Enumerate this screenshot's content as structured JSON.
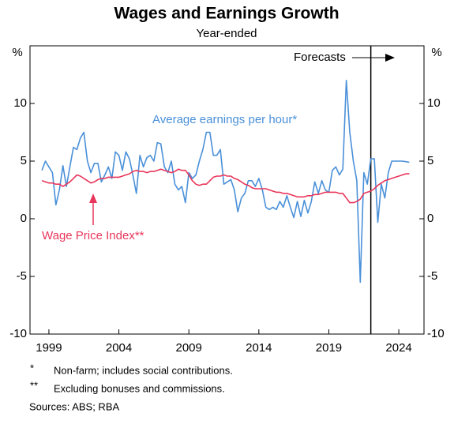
{
  "chart_data": {
    "type": "line",
    "title": "Wages and Earnings Growth",
    "subtitle": "Year-ended",
    "y_unit": "%",
    "xlim": [
      1997.65,
      2025.8
    ],
    "xticks": [
      1999,
      2004,
      2009,
      2014,
      2019,
      2024
    ],
    "ylim": [
      -10,
      15
    ],
    "yticks": [
      -10,
      -5,
      0,
      5,
      10
    ],
    "grid": false,
    "forecast_start": 2022,
    "forecast_label": "Forecasts",
    "x": [
      1998.5,
      1998.75,
      1999,
      1999.25,
      1999.5,
      1999.75,
      2000,
      2000.25,
      2000.5,
      2000.75,
      2001,
      2001.25,
      2001.5,
      2001.75,
      2002,
      2002.25,
      2002.5,
      2002.75,
      2003,
      2003.25,
      2003.5,
      2003.75,
      2004,
      2004.25,
      2004.5,
      2004.75,
      2005,
      2005.25,
      2005.5,
      2005.75,
      2006,
      2006.25,
      2006.5,
      2006.75,
      2007,
      2007.25,
      2007.5,
      2007.75,
      2008,
      2008.25,
      2008.5,
      2008.75,
      2009,
      2009.25,
      2009.5,
      2009.75,
      2010,
      2010.25,
      2010.5,
      2010.75,
      2011,
      2011.25,
      2011.5,
      2011.75,
      2012,
      2012.25,
      2012.5,
      2012.75,
      2013,
      2013.25,
      2013.5,
      2013.75,
      2014,
      2014.25,
      2014.5,
      2014.75,
      2015,
      2015.25,
      2015.5,
      2015.75,
      2016,
      2016.25,
      2016.5,
      2016.75,
      2017,
      2017.25,
      2017.5,
      2017.75,
      2018,
      2018.25,
      2018.5,
      2018.75,
      2019,
      2019.25,
      2019.5,
      2019.75,
      2020,
      2020.25,
      2020.5,
      2020.75,
      2021,
      2021.25,
      2021.5,
      2021.75,
      2022,
      2022.25,
      2022.5,
      2022.75,
      2023,
      2023.25,
      2023.5,
      2023.75,
      2024,
      2024.25,
      2024.5,
      2024.75
    ],
    "series": [
      {
        "name": "Average earnings per hour*",
        "color": "#4a90d9",
        "values": [
          4.2,
          5.0,
          4.5,
          4.0,
          1.2,
          2.5,
          4.6,
          2.8,
          4.5,
          6.2,
          6.0,
          7.0,
          7.5,
          5.0,
          4.0,
          4.8,
          4.8,
          3.2,
          3.8,
          4.5,
          3.5,
          5.8,
          5.5,
          4.2,
          5.8,
          5.2,
          3.8,
          2.2,
          5.5,
          4.5,
          5.3,
          5.5,
          5.0,
          6.6,
          6.5,
          4.5,
          4.0,
          5.0,
          3.0,
          2.5,
          2.8,
          1.4,
          4.0,
          3.5,
          3.8,
          5.0,
          6.0,
          7.5,
          7.5,
          5.5,
          5.5,
          6.0,
          3.0,
          3.2,
          3.4,
          2.5,
          0.6,
          1.8,
          2.2,
          3.3,
          3.3,
          2.8,
          3.5,
          2.5,
          1.0,
          0.8,
          1.0,
          0.8,
          1.5,
          1.0,
          2.0,
          1.0,
          0.1,
          1.5,
          0.2,
          1.6,
          0.5,
          1.5,
          3.2,
          2.2,
          3.3,
          2.5,
          2.3,
          4.2,
          4.5,
          3.8,
          4.3,
          12.0,
          7.5,
          5.0,
          3.3,
          -5.5,
          4.0,
          3.0,
          5.2,
          5.2,
          -0.3,
          3.0,
          1.8,
          4.0,
          5.0,
          5.0,
          5.0,
          5.0,
          4.95,
          4.9
        ]
      },
      {
        "name": "Wage Price Index**",
        "color": "#e8365a",
        "values": [
          3.3,
          3.2,
          3.1,
          3.1,
          3.0,
          3.0,
          2.8,
          3.0,
          3.2,
          3.5,
          3.8,
          3.7,
          3.5,
          3.3,
          3.1,
          3.2,
          3.4,
          3.5,
          3.5,
          3.6,
          3.6,
          3.6,
          3.6,
          3.7,
          3.8,
          3.9,
          4.1,
          4.2,
          4.1,
          4.1,
          4.0,
          4.1,
          4.1,
          4.2,
          4.3,
          4.2,
          4.1,
          4.0,
          4.1,
          4.3,
          4.2,
          4.2,
          3.8,
          3.3,
          3.0,
          2.9,
          3.0,
          3.0,
          3.3,
          3.6,
          3.7,
          3.7,
          3.8,
          3.7,
          3.7,
          3.5,
          3.4,
          3.2,
          3.0,
          2.9,
          2.7,
          2.6,
          2.6,
          2.6,
          2.6,
          2.5,
          2.4,
          2.3,
          2.3,
          2.2,
          2.2,
          2.1,
          2.0,
          1.9,
          1.9,
          1.9,
          2.0,
          2.0,
          2.1,
          2.1,
          2.2,
          2.3,
          2.3,
          2.3,
          2.3,
          2.2,
          2.2,
          1.8,
          1.4,
          1.4,
          1.5,
          1.7,
          2.2,
          2.3,
          2.4,
          2.6,
          2.9,
          3.1,
          3.3,
          3.4,
          3.5,
          3.6,
          3.7,
          3.8,
          3.9,
          3.9
        ]
      }
    ],
    "footnotes": [
      {
        "marker": "*",
        "text": "Non-farm; includes social contributions."
      },
      {
        "marker": "**",
        "text": "Excluding bonuses and commissions."
      }
    ],
    "source": "Sources: ABS; RBA"
  }
}
